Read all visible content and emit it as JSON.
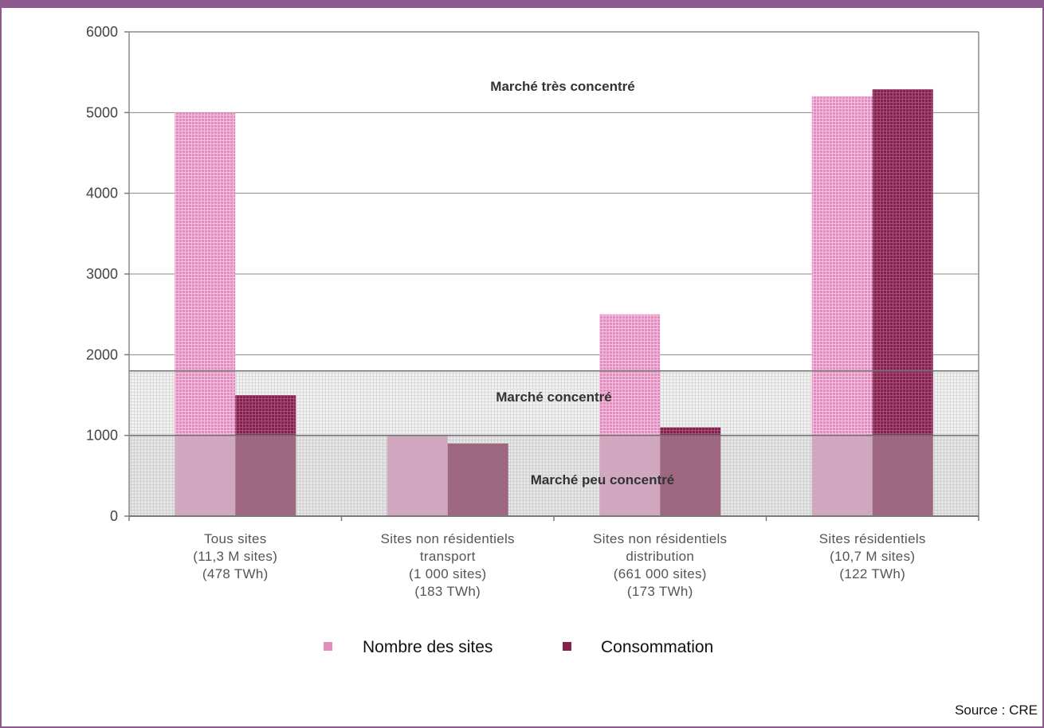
{
  "chart_data": {
    "type": "bar",
    "categories": [
      [
        "Tous sites",
        "(11,3 M sites)",
        "(478 TWh)"
      ],
      [
        "Sites non résidentiels",
        "transport",
        "(1 000 sites)",
        "(183 TWh)"
      ],
      [
        "Sites non résidentiels",
        "distribution",
        "(661 000 sites)",
        "(173 TWh)"
      ],
      [
        "Sites résidentiels",
        "(10,7 M sites)",
        "(122 TWh)"
      ]
    ],
    "series": [
      {
        "name": "Nombre des sites",
        "values": [
          5000,
          1000,
          2500,
          5200
        ]
      },
      {
        "name": "Consommation",
        "values": [
          1500,
          900,
          1100,
          5290
        ]
      }
    ],
    "ylim": [
      0,
      6000
    ],
    "yticks": [
      "0",
      "1000",
      "2000",
      "3000",
      "4000",
      "5000",
      "6000"
    ],
    "zones": [
      {
        "label": "Marché très concentré",
        "from": 1800,
        "to": 6000
      },
      {
        "label": "Marché concentré",
        "from": 1000,
        "to": 1800
      },
      {
        "label": "Marché peu concentré",
        "from": 0,
        "to": 1000
      }
    ],
    "legend_position": "bottom",
    "colors": {
      "series1": "#e48cc0",
      "series2": "#85214f"
    }
  },
  "source": "Source : CRE"
}
